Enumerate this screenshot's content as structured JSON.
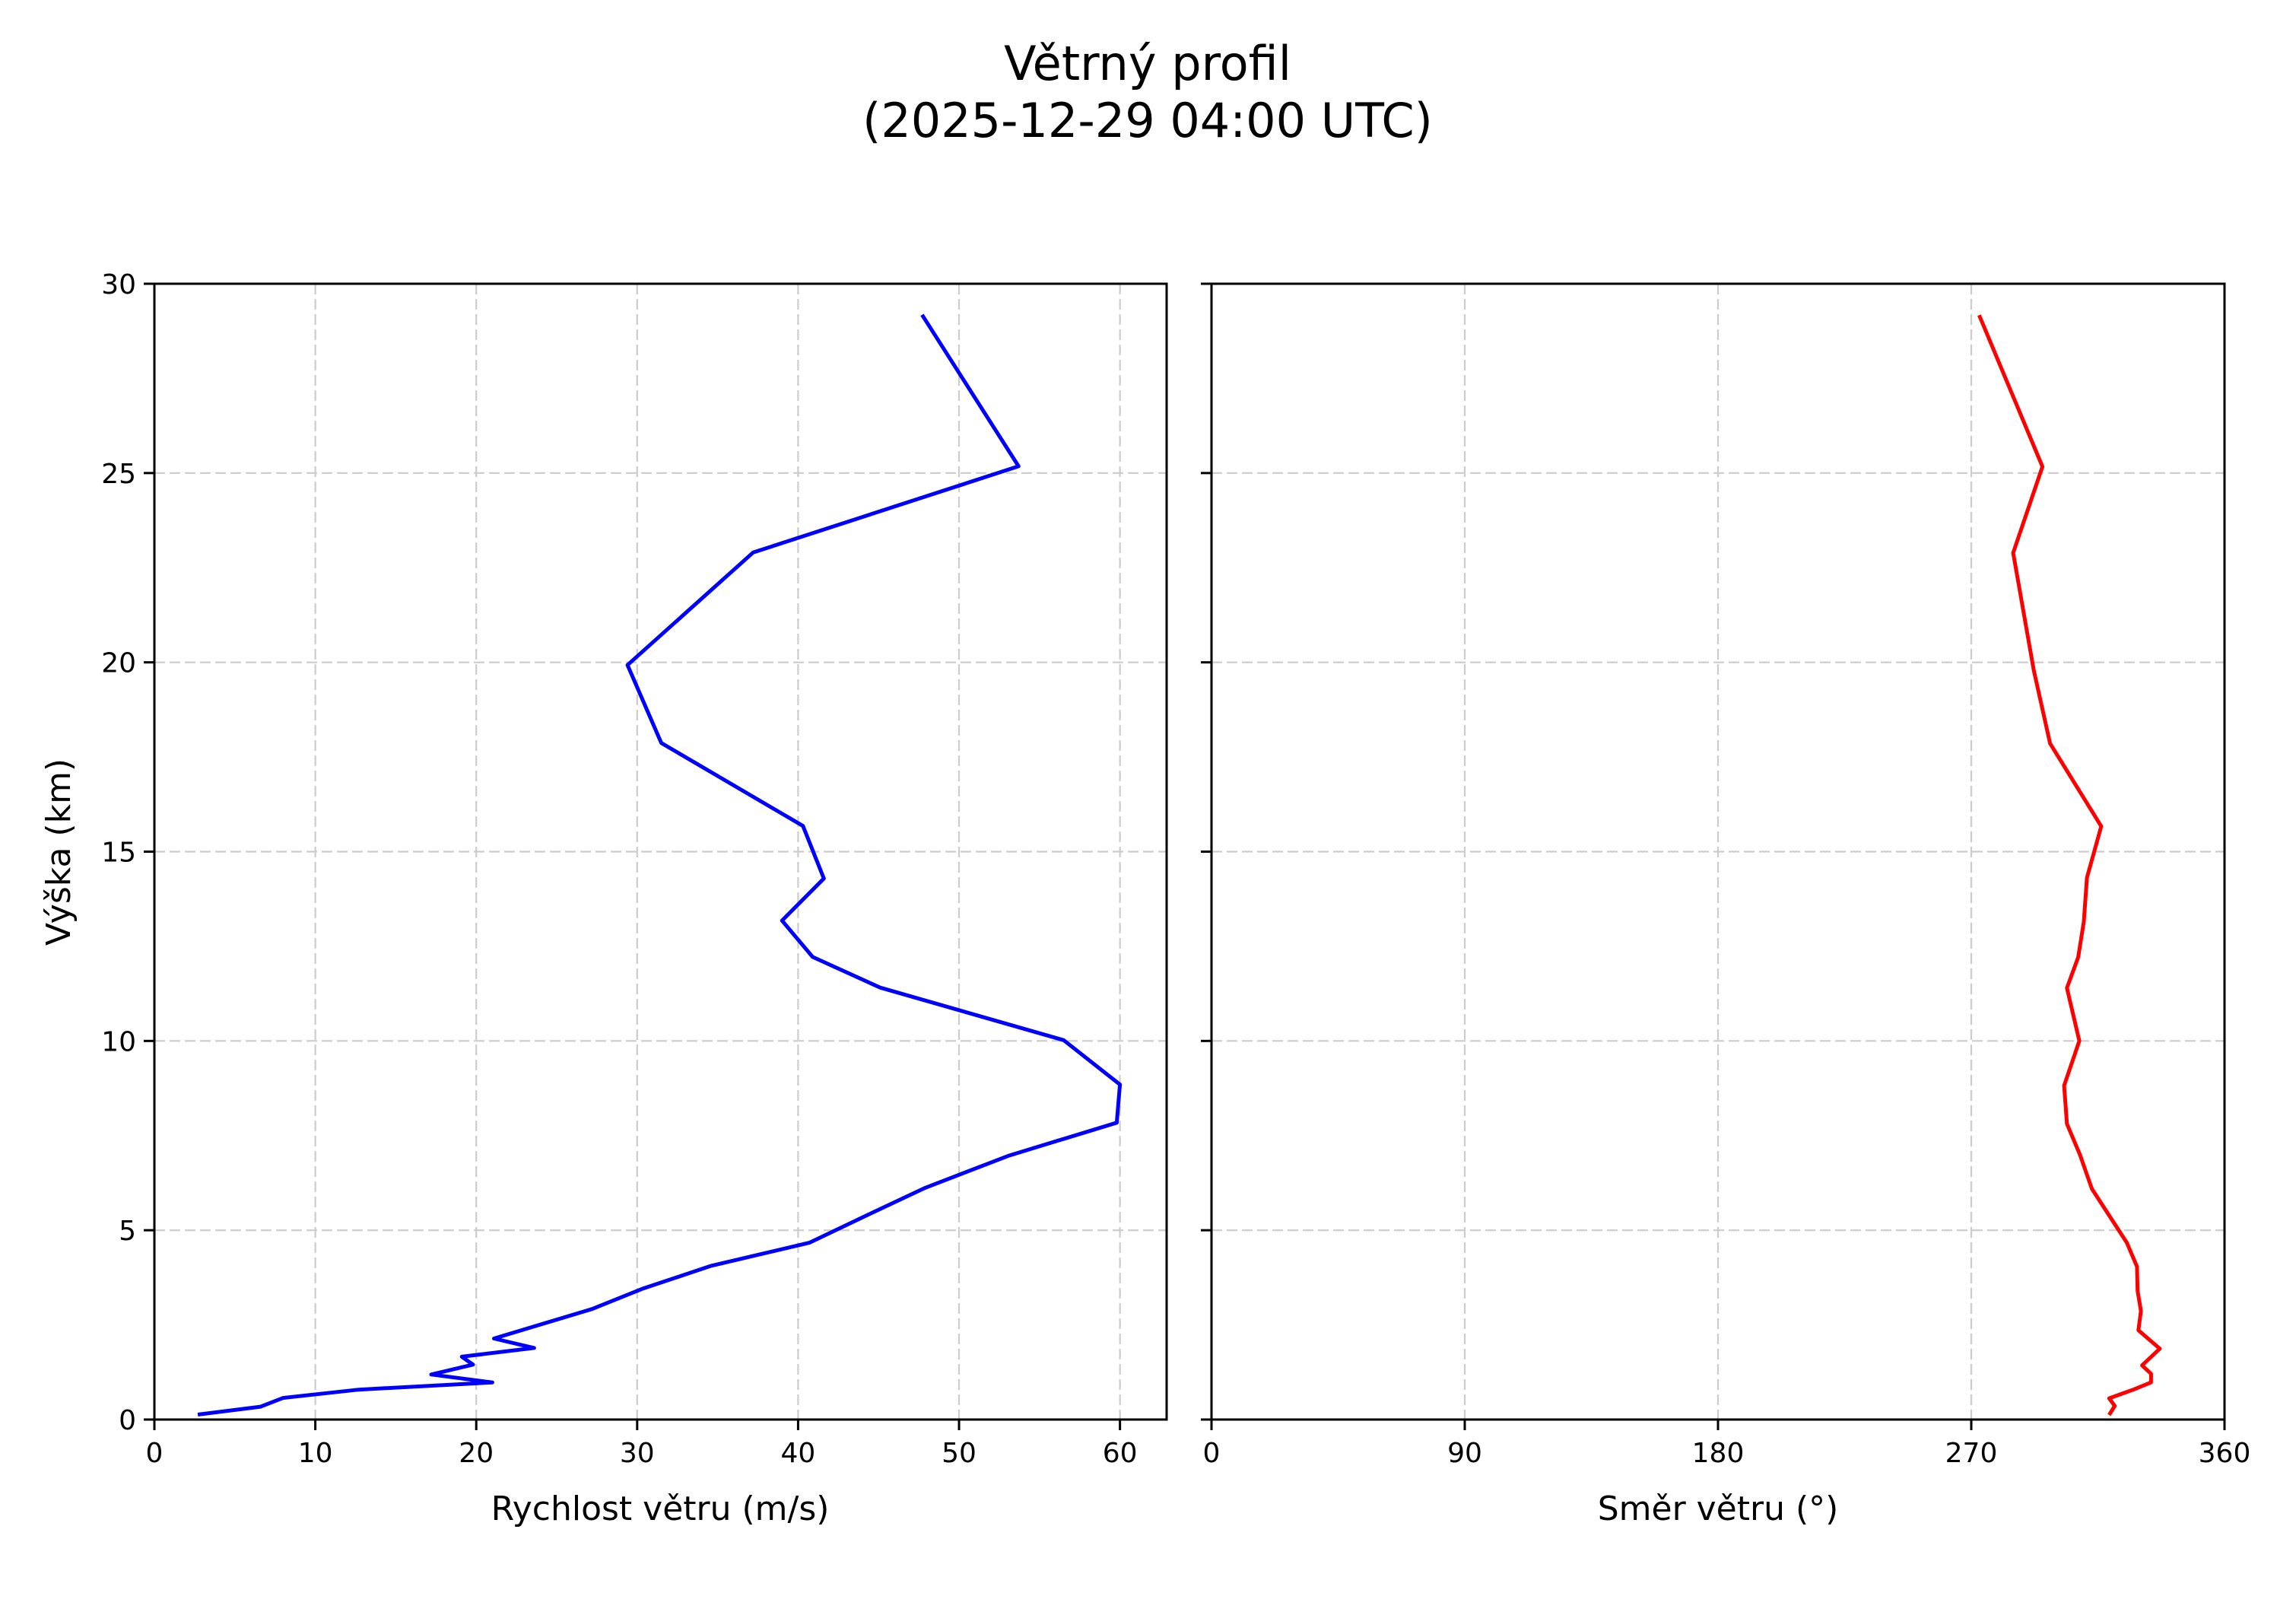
{
  "figure": {
    "title_line1": "Větrný profil",
    "title_line2": "(2025-12-29 04:00 UTC)"
  },
  "colors": {
    "speed_line": "#0000ff",
    "direction_line": "#ff0000",
    "grid": "#cccccc",
    "axes": "#000000"
  },
  "chart_data": [
    {
      "type": "line",
      "title": "Větrný profil (2025-12-29 04:00 UTC)",
      "panel": "left",
      "xlabel": "Rychlost větru (m/s)",
      "ylabel": "Výška (km)",
      "xlim": [
        0,
        62.9
      ],
      "ylim": [
        0,
        30
      ],
      "xticks": [
        0,
        10,
        20,
        30,
        40,
        50,
        60
      ],
      "yticks": [
        0,
        5,
        10,
        15,
        20,
        25,
        30
      ],
      "grid": true,
      "series": [
        {
          "name": "Rychlost větru",
          "color": "#0000ff",
          "x": [
            2.7,
            6.6,
            8.0,
            12.7,
            21.0,
            17.2,
            19.8,
            19.1,
            23.6,
            21.1,
            27.2,
            30.3,
            34.6,
            40.7,
            44.4,
            47.9,
            53.1,
            59.8,
            60.0,
            56.5,
            45.1,
            40.9,
            39.0,
            41.6,
            40.3,
            31.5,
            29.4,
            37.2,
            53.7,
            47.7
          ],
          "y": [
            0.13,
            0.34,
            0.57,
            0.79,
            0.98,
            1.19,
            1.45,
            1.66,
            1.89,
            2.14,
            2.92,
            3.45,
            4.06,
            4.67,
            5.42,
            6.12,
            6.97,
            7.84,
            8.85,
            10.02,
            11.41,
            12.22,
            13.18,
            14.29,
            15.68,
            17.87,
            19.93,
            22.9,
            25.18,
            29.18
          ]
        }
      ]
    },
    {
      "type": "line",
      "panel": "right",
      "xlabel": "Směr větru (°)",
      "ylabel": "",
      "xlim": [
        0,
        360
      ],
      "ylim": [
        0,
        30
      ],
      "xticks": [
        0,
        90,
        180,
        270,
        360
      ],
      "yticks": [
        0,
        5,
        10,
        15,
        20,
        25,
        30
      ],
      "ytick_labels_visible": false,
      "grid": true,
      "series": [
        {
          "name": "Směr větru",
          "color": "#ff0000",
          "x": [
            319.0,
            321.0,
            319.0,
            327.6,
            333.9,
            333.9,
            330.7,
            337.0,
            329.4,
            330.3,
            329.1,
            328.9,
            325.3,
            312.9,
            308.6,
            304.0,
            303.0,
            308.4,
            304.0,
            308.0,
            310.0,
            311.1,
            316.2,
            298.0,
            292.2,
            284.9,
            295.3,
            272.8
          ],
          "y": [
            0.12,
            0.36,
            0.56,
            0.79,
            0.98,
            1.21,
            1.43,
            1.87,
            2.36,
            2.87,
            3.4,
            4.04,
            4.67,
            6.09,
            7.0,
            7.81,
            8.82,
            10.0,
            11.4,
            12.21,
            13.15,
            14.31,
            15.67,
            17.86,
            19.8,
            22.89,
            25.17,
            29.17
          ]
        }
      ]
    }
  ]
}
